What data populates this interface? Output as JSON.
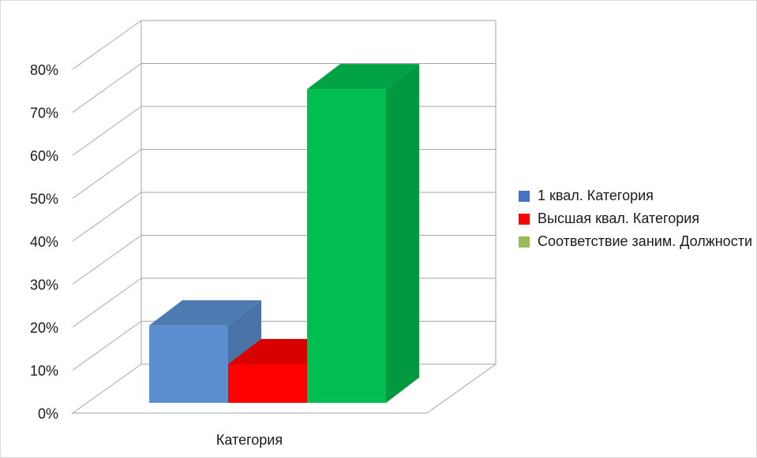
{
  "chart_data": {
    "type": "bar",
    "style": "3d-clustered-column",
    "title": "",
    "xlabel": "",
    "ylabel": "",
    "categories": [
      "Категория"
    ],
    "series": [
      {
        "name": "1 квал. Категория",
        "values": [
          0.18
        ],
        "color": "#5b8fd0"
      },
      {
        "name": "Высшая квал. Категория",
        "values": [
          0.09
        ],
        "color": "#ff0000"
      },
      {
        "name": "Соответствие заним. Должности",
        "values": [
          0.73
        ],
        "color": "#00bf50"
      }
    ],
    "legend_colors": [
      "#4472c4",
      "#ff0000",
      "#9bbb59"
    ],
    "ylim": [
      0,
      0.8
    ],
    "yticks": [
      "0%",
      "10%",
      "20%",
      "30%",
      "40%",
      "50%",
      "60%",
      "70%",
      "80%"
    ],
    "grid": true,
    "legend": "right"
  }
}
